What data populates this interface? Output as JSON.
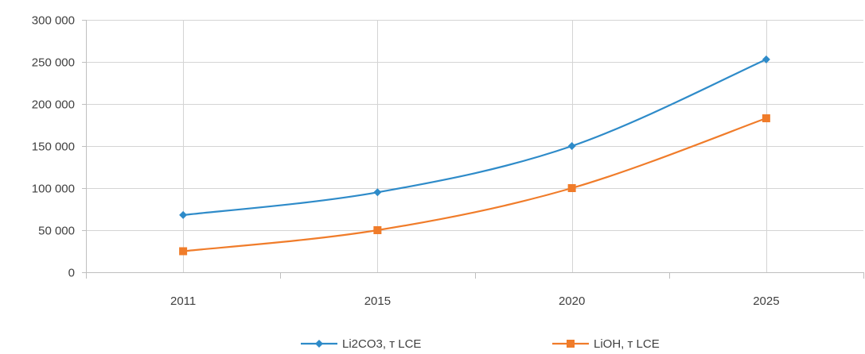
{
  "chart_data": {
    "type": "line",
    "title": "",
    "xlabel": "",
    "ylabel": "",
    "categories": [
      "2011",
      "2015",
      "2020",
      "2025"
    ],
    "ylim": [
      0,
      300000
    ],
    "y_ticks": [
      0,
      50000,
      100000,
      150000,
      200000,
      250000,
      300000
    ],
    "y_tick_labels": [
      "0",
      "50 000",
      "100 000",
      "150 000",
      "200 000",
      "250 000",
      "300 000"
    ],
    "grid": true,
    "legend_position": "bottom",
    "series": [
      {
        "name": "Li2CO3, т LCE",
        "values": [
          68000,
          95000,
          150000,
          253000
        ],
        "color": "#2e8bc9",
        "marker": "diamond"
      },
      {
        "name": "LiOH, т LCE",
        "values": [
          25000,
          50000,
          100000,
          183000
        ],
        "color": "#f07c2a",
        "marker": "square"
      }
    ]
  }
}
